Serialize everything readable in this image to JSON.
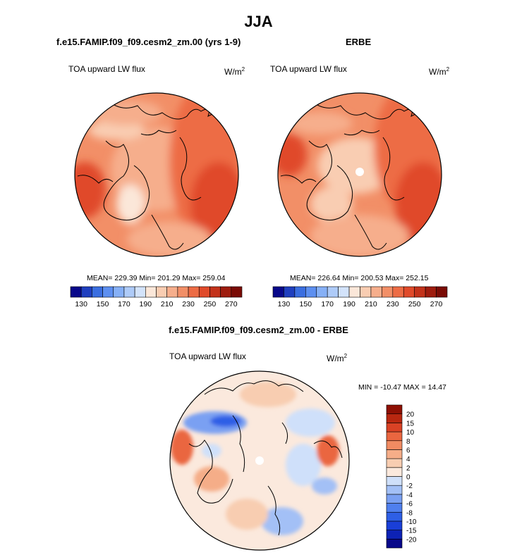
{
  "page_title": "JJA",
  "panels": [
    {
      "header": "f.e15.FAMIP.f09_f09.cesm2_zm.00 (yrs 1-9)",
      "variable": "TOA upward LW flux",
      "units_base": "W/m",
      "units_exp": "2",
      "stats": "MEAN= 229.39  Min= 201.29  Max= 259.04"
    },
    {
      "header": "ERBE",
      "variable": "TOA upward LW flux",
      "units_base": "W/m",
      "units_exp": "2",
      "stats": "MEAN= 226.64  Min= 200.53  Max= 252.15"
    },
    {
      "header": "f.e15.FAMIP.f09_f09.cesm2_zm.00 - ERBE",
      "variable": "TOA upward LW flux",
      "units_base": "W/m",
      "units_exp": "2",
      "stats": "MIN = -10.47 MAX =  14.47"
    }
  ],
  "chart_data": [
    {
      "type": "heatmap",
      "projection": "north-polar-stereographic",
      "title": "f.e15.FAMIP.f09_f09.cesm2_zm.00 (yrs 1-9)",
      "variable": "TOA upward LW flux",
      "units": "W/m2",
      "mean": 229.39,
      "min": 201.29,
      "max": 259.04,
      "colorbar": {
        "orientation": "horizontal",
        "levels": [
          130,
          140,
          150,
          160,
          170,
          180,
          190,
          200,
          210,
          220,
          230,
          240,
          250,
          260,
          270
        ],
        "tick_labels": [
          "130",
          "150",
          "170",
          "190",
          "210",
          "230",
          "250",
          "270"
        ],
        "colors": [
          "#08088a",
          "#1f3fbf",
          "#3a6ee0",
          "#5d8ff0",
          "#86b0f6",
          "#aecbf8",
          "#d3e3fb",
          "#fbe7d9",
          "#f9cdb2",
          "#f6ae8c",
          "#f28f67",
          "#ed6c45",
          "#e04a2a",
          "#c3321a",
          "#9e1c0e",
          "#7a0b05"
        ]
      }
    },
    {
      "type": "heatmap",
      "projection": "north-polar-stereographic",
      "title": "ERBE",
      "variable": "TOA upward LW flux",
      "units": "W/m2",
      "mean": 226.64,
      "min": 200.53,
      "max": 252.15,
      "colorbar": {
        "orientation": "horizontal",
        "levels": [
          130,
          140,
          150,
          160,
          170,
          180,
          190,
          200,
          210,
          220,
          230,
          240,
          250,
          260,
          270
        ],
        "tick_labels": [
          "130",
          "150",
          "170",
          "190",
          "210",
          "230",
          "250",
          "270"
        ],
        "colors": [
          "#08088a",
          "#1f3fbf",
          "#3a6ee0",
          "#5d8ff0",
          "#86b0f6",
          "#aecbf8",
          "#d3e3fb",
          "#fbe7d9",
          "#f9cdb2",
          "#f6ae8c",
          "#f28f67",
          "#ed6c45",
          "#e04a2a",
          "#c3321a",
          "#9e1c0e",
          "#7a0b05"
        ]
      }
    },
    {
      "type": "heatmap",
      "projection": "north-polar-stereographic",
      "title": "f.e15.FAMIP.f09_f09.cesm2_zm.00 - ERBE",
      "variable": "TOA upward LW flux",
      "units": "W/m2",
      "min": -10.47,
      "max": 14.47,
      "colorbar": {
        "orientation": "vertical",
        "levels": [
          -20,
          -15,
          -10,
          -8,
          -6,
          -4,
          -2,
          0,
          2,
          4,
          6,
          8,
          10,
          15,
          20
        ],
        "tick_labels": [
          "-20",
          "-15",
          "-10",
          "-8",
          "-6",
          "-4",
          "-2",
          "0",
          "2",
          "4",
          "6",
          "8",
          "10",
          "15",
          "20"
        ],
        "colors": [
          "#08088a",
          "#0d22b5",
          "#1a3fd8",
          "#2e5fe6",
          "#4f7fee",
          "#7aa0f2",
          "#a3c0f6",
          "#cfe0fa",
          "#fbe9dd",
          "#f8cdb1",
          "#f5ad88",
          "#f18b62",
          "#ea6640",
          "#d94225",
          "#b82710",
          "#8e1004"
        ]
      }
    }
  ]
}
